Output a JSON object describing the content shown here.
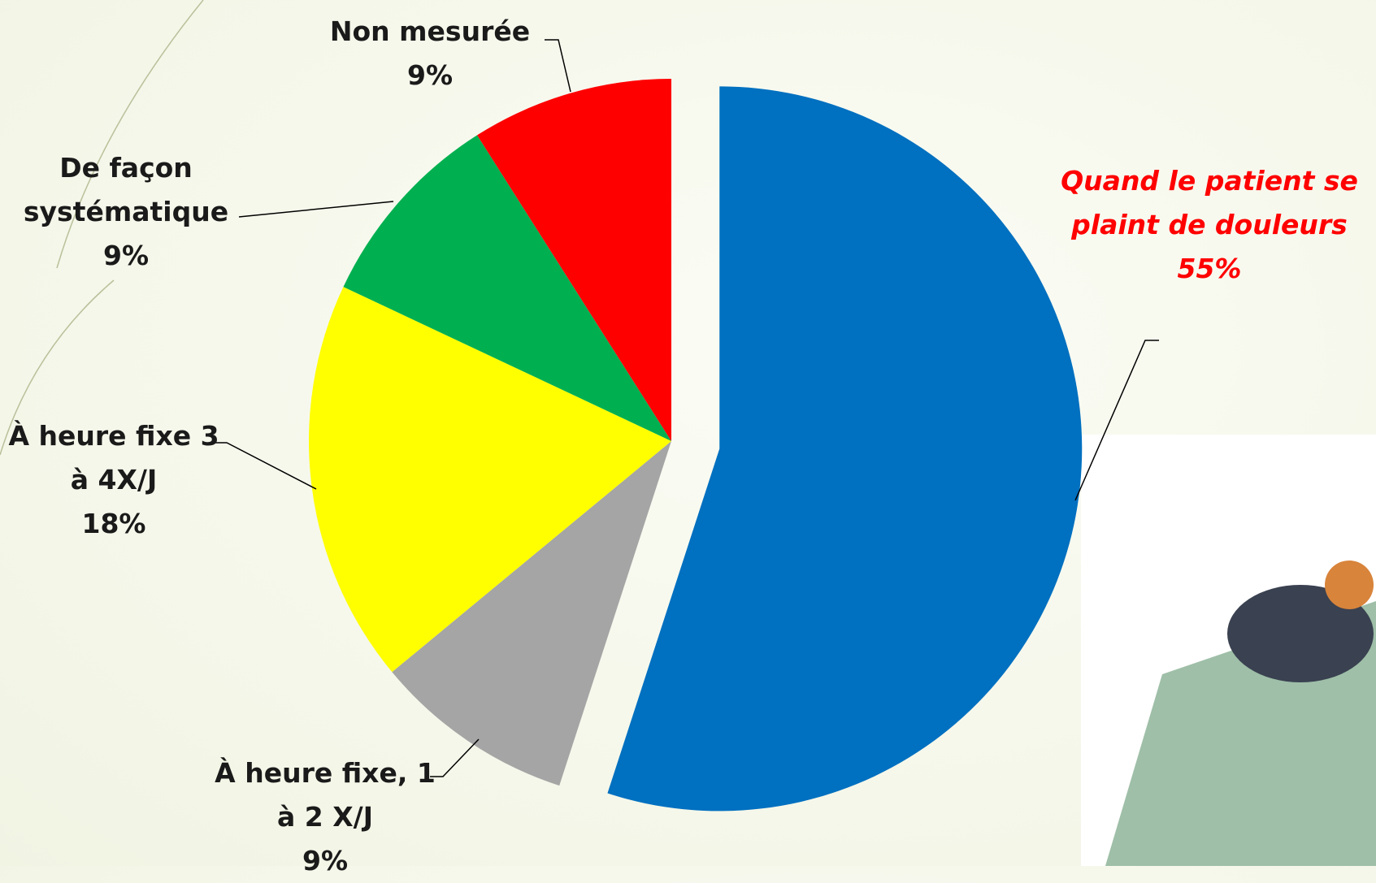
{
  "chart_data": {
    "type": "pie",
    "categories": [
      "Quand le patient se plaint de douleurs",
      "À heure fixe, 1 à 2 X/J",
      "À heure fixe 3 à 4X/J",
      "De façon systématique",
      "Non mesurée"
    ],
    "values": [
      55,
      9,
      18,
      9,
      9
    ],
    "value_labels": [
      "55%",
      "9%",
      "18%",
      "9%",
      "9%"
    ],
    "colors": [
      "#0070c0",
      "#a5a5a5",
      "#ffff00",
      "#00b050",
      "#ff0000"
    ],
    "explode": [
      1,
      0,
      0,
      0,
      0
    ]
  }
}
